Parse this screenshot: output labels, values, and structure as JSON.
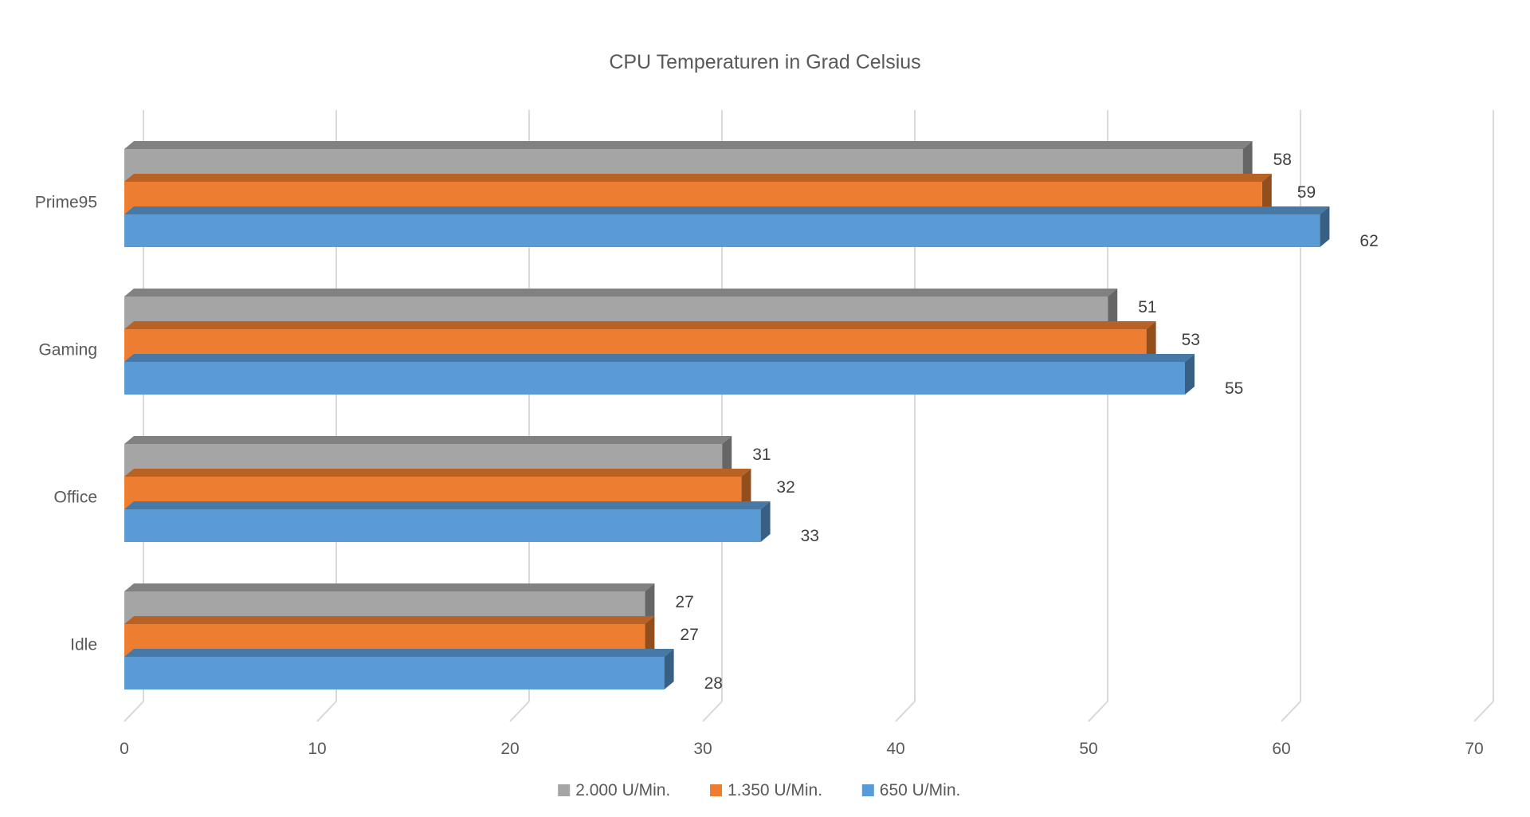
{
  "chart_data": {
    "type": "bar",
    "orientation": "horizontal",
    "style": "3d-clustered",
    "title": "CPU Temperaturen in Grad Celsius",
    "categories": [
      "Prime95",
      "Gaming",
      "Office",
      "Idle"
    ],
    "series": [
      {
        "name": "2.000 U/Min.",
        "color": "#a5a5a5",
        "values": [
          58,
          51,
          31,
          27
        ]
      },
      {
        "name": "1.350 U/Min.",
        "color": "#ed7d31",
        "values": [
          59,
          53,
          32,
          27
        ]
      },
      {
        "name": "650 U/Min.",
        "color": "#5b9bd5",
        "values": [
          62,
          55,
          33,
          28
        ]
      }
    ],
    "xticks": [
      "0",
      "10",
      "20",
      "30",
      "40",
      "50",
      "60",
      "70"
    ],
    "xlim": [
      0,
      70
    ],
    "grid": true,
    "data_labels": true,
    "legend_position": "bottom"
  }
}
